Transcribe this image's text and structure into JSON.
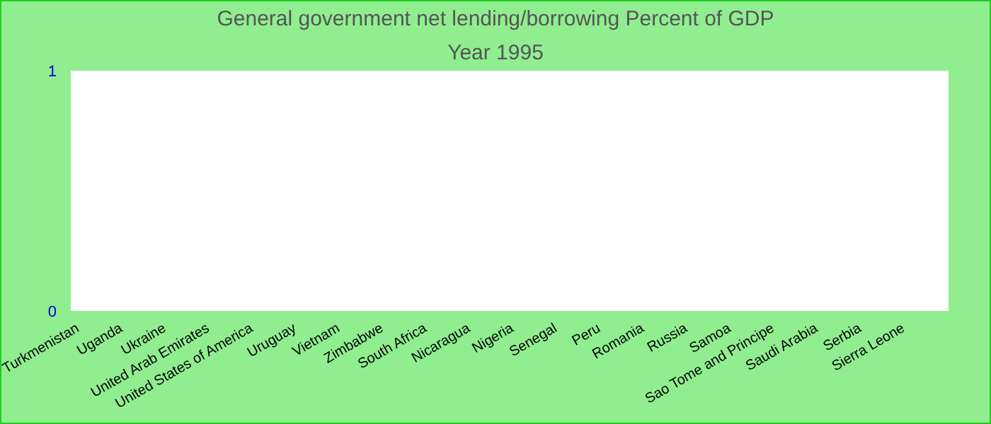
{
  "chart_data": {
    "type": "bar",
    "title": "General government net lending/borrowing  Percent of GDP",
    "subtitle": "Year 1995",
    "categories": [
      "Turkmenistan",
      "Uganda",
      "Ukraine",
      "United Arab Emirates",
      "United States of America",
      "Uruguay",
      "Vietnam",
      "Zimbabwe",
      "South Africa",
      "Nicaragua",
      "Nigeria",
      "Senegal",
      "Peru",
      "Romania",
      "Russia",
      "Samoa",
      "Sao Tome and Principe",
      "Saudi Arabia",
      "Serbia",
      "Sierra Leone"
    ],
    "values": [
      0,
      0,
      0,
      0,
      0,
      0,
      0,
      0,
      0,
      0,
      0,
      0,
      0,
      0,
      0,
      0,
      0,
      0,
      0,
      0
    ],
    "ylim": [
      0,
      1
    ],
    "yticks": [
      0,
      1
    ]
  }
}
